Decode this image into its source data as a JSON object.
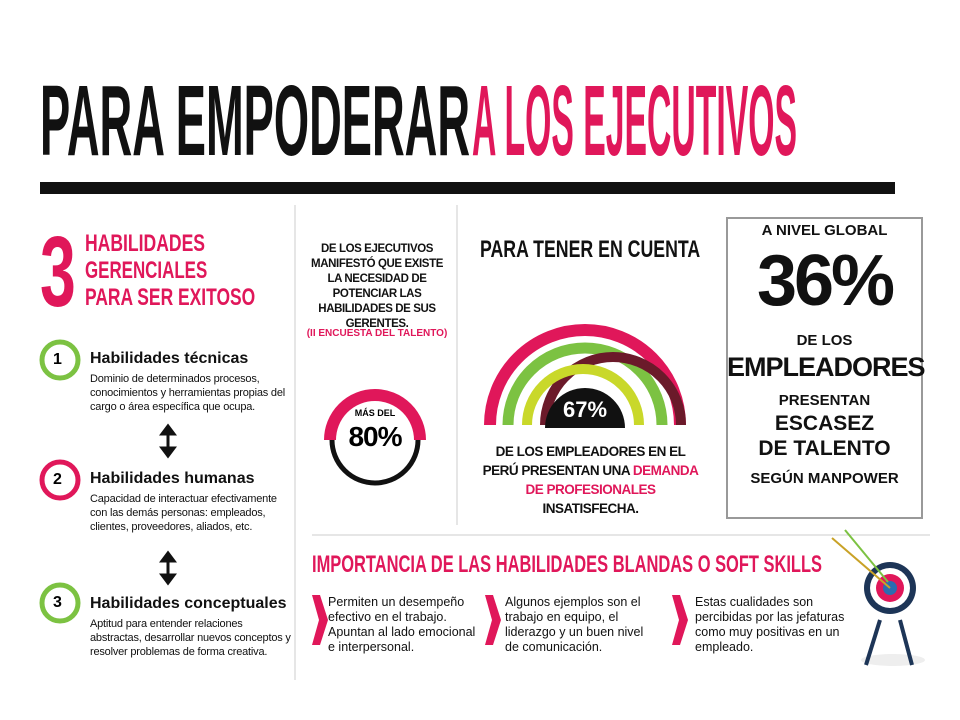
{
  "header": {
    "title_black": "PARA EMPODERAR",
    "title_red": "A LOS EJECUTIVOS"
  },
  "skills": {
    "number": "3",
    "heading": [
      "HABILIDADES",
      "GERENCIALES",
      "PARA SER EXITOSO"
    ],
    "items": [
      {
        "number": "1",
        "title": "Habilidades técnicas",
        "description": "Dominio de determinados procesos, conocimientos y herramientas propias del cargo o área específica que ocupa."
      },
      {
        "number": "2",
        "title": "Habilidades humanas",
        "description": "Capacidad de interactuar efectivamente con las demás personas: empleados, clientes, proveedores, aliados, etc."
      },
      {
        "number": "3",
        "title": "Habilidades conceptuales",
        "description": "Aptitud para entender relaciones abstractas, desarrollar nuevos conceptos y resolver problemas de forma creativa."
      }
    ]
  },
  "survey": {
    "text": "DE LOS EJECUTIVOS MANIFESTÓ QUE EXISTE LA NECESIDAD DE POTENCIAR LAS HABILIDADES DE SUS GERENTES.",
    "source": "(II ENCUESTA DEL TALENTO)",
    "prefix": "MÁS DEL",
    "value": "80%"
  },
  "consider": {
    "title": "PARA TENER EN CUENTA",
    "value": "67%",
    "text_start": "DE LOS EMPLEADORES EN EL PERÚ PRESENTAN UNA",
    "text_highlight": "DEMANDA DE PROFESIONALES",
    "text_end": "INSATISFECHA."
  },
  "global": {
    "lines": [
      "A NIVEL GLOBAL",
      "36%",
      "DE LOS",
      "EMPLEADORES",
      "PRESENTAN",
      "ESCASEZ",
      "DE TALENTO",
      "SEGÚN MANPOWER"
    ]
  },
  "soft_skills": {
    "title": "IMPORTANCIA DE LAS HABILIDADES BLANDAS O SOFT SKILLS",
    "items": [
      "Permiten un desempeño efectivo en el trabajo. Apuntan al lado emocional e interpersonal.",
      "Algunos ejemplos son el trabajo en equipo, el liderazgo y un buen nivel de comunicación.",
      "Estas cualidades son percibidas por las jefaturas como muy positivas en un empleado."
    ]
  }
}
